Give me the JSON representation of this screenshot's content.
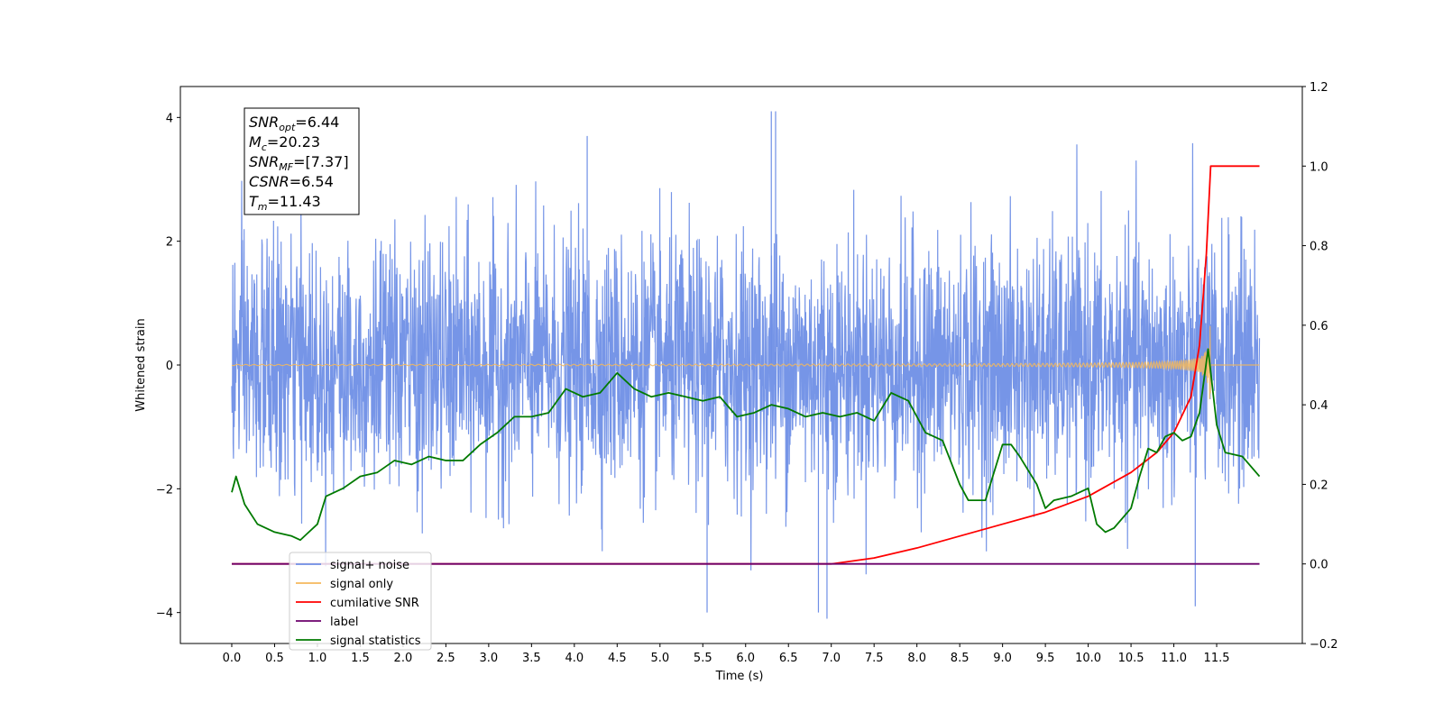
{
  "chart_data": {
    "type": "line",
    "xlabel": "Time (s)",
    "ylabel": "Whitened strain",
    "xlim": [
      -0.6,
      12.5
    ],
    "ylim": [
      -4.5,
      4.5
    ],
    "y2lim": [
      -0.2,
      1.2
    ],
    "x_ticks": [
      "0.0",
      "0.5",
      "1.0",
      "1.5",
      "2.0",
      "2.5",
      "3.0",
      "3.5",
      "4.0",
      "4.5",
      "5.0",
      "5.5",
      "6.0",
      "6.5",
      "7.0",
      "7.5",
      "8.0",
      "8.5",
      "9.0",
      "9.5",
      "10.0",
      "10.5",
      "11.0",
      "11.5"
    ],
    "y_ticks": [
      "4",
      "2",
      "0",
      "−2",
      "−4"
    ],
    "y2_ticks": [
      "1.2",
      "1.0",
      "0.8",
      "0.6",
      "0.4",
      "0.2",
      "0.0",
      "−0.2"
    ],
    "annotation": [
      {
        "base": "SNR",
        "sub": "opt",
        "value": "=6.44"
      },
      {
        "base": "M",
        "sub": "c",
        "value": "=20.23"
      },
      {
        "base": "SNR",
        "sub": "MF",
        "value": "=[7.37]"
      },
      {
        "base": "CSNR",
        "sub": "",
        "value": "=6.54"
      },
      {
        "base": "T",
        "sub": "m",
        "value": "=11.43"
      }
    ],
    "legend": {
      "position": "lower-left",
      "entries": [
        {
          "label": "signal+ noise",
          "color": "#6f8fe6"
        },
        {
          "label": "signal only",
          "color": "#f5b85c"
        },
        {
          "label": "cumilative SNR",
          "color": "#ff0000"
        },
        {
          "label": "label",
          "color": "#6b006b"
        },
        {
          "label": "signal statistics",
          "color": "#007a00"
        }
      ]
    },
    "series": [
      {
        "name": "signal+ noise",
        "axis": "left",
        "color": "#6f8fe6",
        "x_range": [
          0.0,
          12.0
        ],
        "y_range_approx": [
          -4.1,
          4.1
        ],
        "noise_sigma_approx": 1.0,
        "extremes": [
          {
            "x": 6.3,
            "y": 4.1
          },
          {
            "x": 6.35,
            "y": 4.1
          },
          {
            "x": 4.15,
            "y": 3.7
          },
          {
            "x": 6.85,
            "y": -4.0
          },
          {
            "x": 6.95,
            "y": -4.1
          },
          {
            "x": 11.25,
            "y": -3.9
          },
          {
            "x": 5.55,
            "y": -4.0
          }
        ]
      },
      {
        "name": "signal only",
        "axis": "left",
        "color": "#f5b85c",
        "x_range": [
          0.0,
          12.0
        ],
        "peak_time": 11.43,
        "peak_amplitude": 1.2
      },
      {
        "name": "cumilative SNR",
        "axis": "right",
        "color": "#ff0000",
        "x": [
          0.0,
          6.5,
          7.0,
          7.5,
          8.0,
          8.5,
          9.0,
          9.5,
          10.0,
          10.5,
          10.8,
          11.0,
          11.2,
          11.3,
          11.38,
          11.43,
          12.0
        ],
        "y": [
          0.0,
          0.0,
          0.0,
          0.015,
          0.04,
          0.07,
          0.1,
          0.13,
          0.17,
          0.23,
          0.28,
          0.33,
          0.42,
          0.55,
          0.78,
          1.0,
          1.0
        ]
      },
      {
        "name": "label",
        "axis": "right",
        "color": "#6b006b",
        "x": [
          0.0,
          12.0
        ],
        "y": [
          0.0,
          0.0
        ]
      },
      {
        "name": "signal statistics",
        "axis": "right",
        "color": "#007a00",
        "x": [
          0.0,
          0.05,
          0.15,
          0.3,
          0.5,
          0.7,
          0.8,
          0.9,
          1.0,
          1.1,
          1.3,
          1.5,
          1.7,
          1.9,
          2.1,
          2.3,
          2.5,
          2.7,
          2.9,
          3.1,
          3.3,
          3.5,
          3.7,
          3.9,
          4.1,
          4.3,
          4.5,
          4.7,
          4.9,
          5.1,
          5.3,
          5.5,
          5.7,
          5.9,
          6.1,
          6.3,
          6.5,
          6.7,
          6.9,
          7.1,
          7.3,
          7.5,
          7.7,
          7.9,
          8.1,
          8.3,
          8.5,
          8.6,
          8.8,
          9.0,
          9.1,
          9.2,
          9.4,
          9.5,
          9.6,
          9.8,
          10.0,
          10.1,
          10.2,
          10.3,
          10.5,
          10.6,
          10.7,
          10.8,
          10.9,
          11.0,
          11.1,
          11.2,
          11.3,
          11.4,
          11.5,
          11.6,
          11.8,
          12.0
        ],
        "y": [
          0.18,
          0.22,
          0.15,
          0.1,
          0.08,
          0.07,
          0.06,
          0.08,
          0.1,
          0.17,
          0.19,
          0.22,
          0.23,
          0.26,
          0.25,
          0.27,
          0.26,
          0.26,
          0.3,
          0.33,
          0.37,
          0.37,
          0.38,
          0.44,
          0.42,
          0.43,
          0.48,
          0.44,
          0.42,
          0.43,
          0.42,
          0.41,
          0.42,
          0.37,
          0.38,
          0.4,
          0.39,
          0.37,
          0.38,
          0.37,
          0.38,
          0.36,
          0.43,
          0.41,
          0.33,
          0.31,
          0.2,
          0.16,
          0.16,
          0.3,
          0.3,
          0.27,
          0.2,
          0.14,
          0.16,
          0.17,
          0.19,
          0.1,
          0.08,
          0.09,
          0.14,
          0.22,
          0.29,
          0.28,
          0.32,
          0.33,
          0.31,
          0.32,
          0.38,
          0.54,
          0.35,
          0.28,
          0.27,
          0.22
        ]
      }
    ]
  }
}
